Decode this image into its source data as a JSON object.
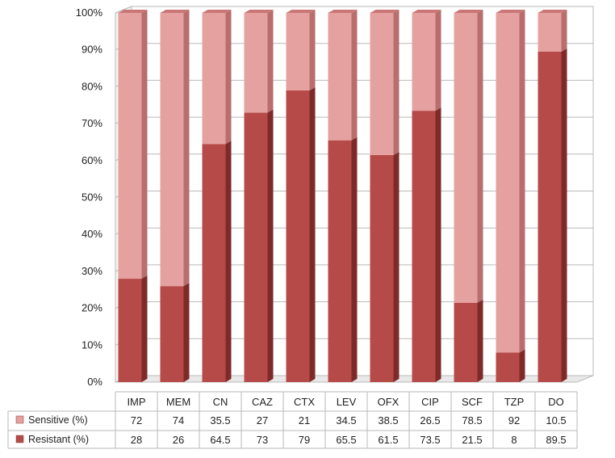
{
  "chart_data": {
    "type": "bar",
    "stacked": true,
    "percent_stacked": true,
    "three_d": true,
    "categories": [
      "IMP",
      "MEM",
      "CN",
      "CAZ",
      "CTX",
      "LEV",
      "OFX",
      "CIP",
      "SCF",
      "TZP",
      "DO"
    ],
    "series": [
      {
        "name": "Resistant (%)",
        "values": [
          28,
          26,
          64.5,
          73,
          79,
          65.5,
          61.5,
          73.5,
          21.5,
          8,
          89.5
        ],
        "color": "#B64A48"
      },
      {
        "name": "Sensitive (%)",
        "values": [
          72,
          74,
          35.5,
          27,
          21,
          34.5,
          38.5,
          26.5,
          78.5,
          92,
          10.5
        ],
        "color": "#E5A1A0"
      }
    ],
    "series_values_text": {
      "Sensitive (%)": [
        "72",
        "74",
        "35.5",
        "27",
        "21",
        "34.5",
        "38.5",
        "26.5",
        "78.5",
        "92",
        "10.5"
      ],
      "Resistant (%)": [
        "28",
        "26",
        "64.5",
        "73",
        "79",
        "65.5",
        "61.5",
        "73.5",
        "21.5",
        "8",
        "89.5"
      ]
    },
    "yticks": [
      "0%",
      "10%",
      "20%",
      "30%",
      "40%",
      "50%",
      "60%",
      "70%",
      "80%",
      "90%",
      "100%"
    ],
    "ylim": [
      0,
      100
    ],
    "grid": true,
    "legend": "data-table",
    "table_row_order": [
      "Sensitive (%)",
      "Resistant (%)"
    ],
    "colors": {
      "resistant": "#B64A48",
      "resistant_side": "#7E2A29",
      "sensitive": "#E5A1A0",
      "sensitive_side": "#B86E6D",
      "grid": "#B9B9B9"
    }
  }
}
